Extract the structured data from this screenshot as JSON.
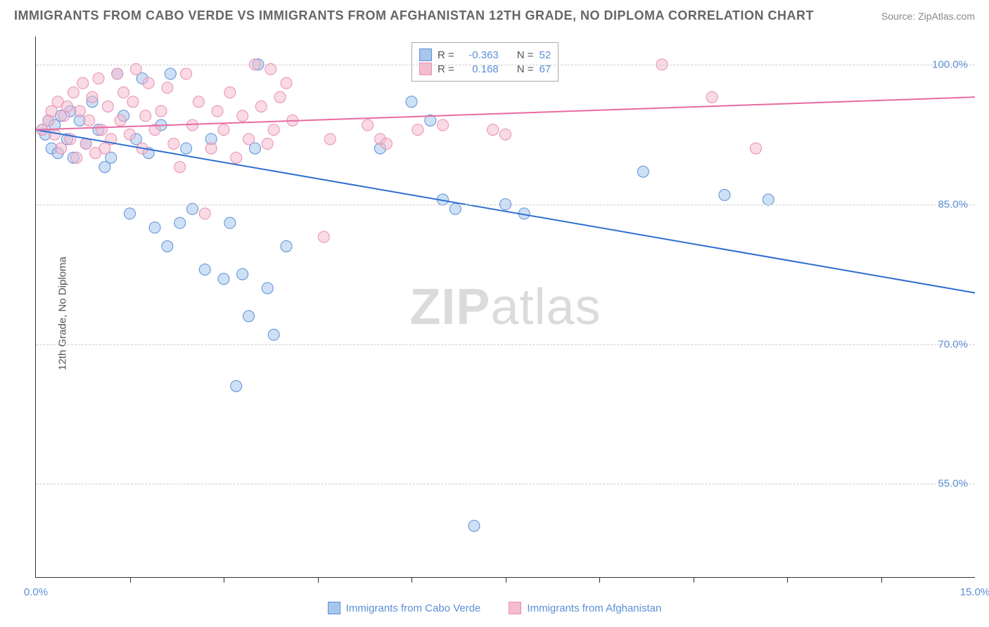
{
  "title": "IMMIGRANTS FROM CABO VERDE VS IMMIGRANTS FROM AFGHANISTAN 12TH GRADE, NO DIPLOMA CORRELATION CHART",
  "source": "Source: ZipAtlas.com",
  "ylabel": "12th Grade, No Diploma",
  "watermark_a": "ZIP",
  "watermark_b": "atlas",
  "chart": {
    "type": "scatter",
    "xlim": [
      0,
      15
    ],
    "ylim": [
      45,
      103
    ],
    "yticks": [
      {
        "v": 55.0,
        "label": "55.0%"
      },
      {
        "v": 70.0,
        "label": "70.0%"
      },
      {
        "v": 85.0,
        "label": "85.0%"
      },
      {
        "v": 100.0,
        "label": "100.0%"
      }
    ],
    "xticks_minor": [
      1.5,
      3,
      4.5,
      6,
      7.5,
      9,
      10.5,
      12,
      13.5
    ],
    "xticks_labeled": [
      {
        "v": 0,
        "label": "0.0%"
      },
      {
        "v": 15,
        "label": "15.0%"
      }
    ],
    "grid_color": "#cccccc",
    "background_color": "#ffffff",
    "marker_radius": 8,
    "marker_opacity": 0.55,
    "line_width": 2,
    "series": [
      {
        "name": "Immigrants from Cabo Verde",
        "color_fill": "#a6c6ec",
        "color_stroke": "#5b8fd6",
        "line_color": "#2f6fd0",
        "R": "-0.363",
        "N": "52",
        "trend": {
          "x1": 0,
          "y1": 93.0,
          "x2": 15,
          "y2": 75.5
        },
        "points": [
          [
            0.1,
            93.0
          ],
          [
            0.15,
            92.5
          ],
          [
            0.2,
            94.0
          ],
          [
            0.25,
            91.0
          ],
          [
            0.3,
            93.5
          ],
          [
            0.35,
            90.5
          ],
          [
            0.4,
            94.5
          ],
          [
            0.5,
            92.0
          ],
          [
            0.55,
            95.0
          ],
          [
            0.6,
            90.0
          ],
          [
            0.7,
            94.0
          ],
          [
            0.8,
            91.5
          ],
          [
            0.9,
            96.0
          ],
          [
            1.0,
            93.0
          ],
          [
            1.1,
            89.0
          ],
          [
            1.2,
            90.0
          ],
          [
            1.3,
            99.0
          ],
          [
            1.4,
            94.5
          ],
          [
            1.5,
            84.0
          ],
          [
            1.6,
            92.0
          ],
          [
            1.7,
            98.5
          ],
          [
            1.8,
            90.5
          ],
          [
            1.9,
            82.5
          ],
          [
            2.0,
            93.5
          ],
          [
            2.1,
            80.5
          ],
          [
            2.15,
            99.0
          ],
          [
            2.3,
            83.0
          ],
          [
            2.4,
            91.0
          ],
          [
            2.5,
            84.5
          ],
          [
            2.7,
            78.0
          ],
          [
            2.8,
            92.0
          ],
          [
            3.0,
            77.0
          ],
          [
            3.1,
            83.0
          ],
          [
            3.2,
            65.5
          ],
          [
            3.3,
            77.5
          ],
          [
            3.4,
            73.0
          ],
          [
            3.5,
            91.0
          ],
          [
            3.55,
            100.0
          ],
          [
            3.7,
            76.0
          ],
          [
            3.8,
            71.0
          ],
          [
            4.0,
            80.5
          ],
          [
            5.5,
            91.0
          ],
          [
            6.0,
            96.0
          ],
          [
            6.3,
            94.0
          ],
          [
            6.5,
            85.5
          ],
          [
            6.7,
            84.5
          ],
          [
            7.0,
            50.5
          ],
          [
            7.5,
            85.0
          ],
          [
            7.8,
            84.0
          ],
          [
            9.7,
            88.5
          ],
          [
            11.0,
            86.0
          ],
          [
            11.7,
            85.5
          ]
        ]
      },
      {
        "name": "Immigrants from Afghanistan",
        "color_fill": "#f4bccf",
        "color_stroke": "#e88fb0",
        "line_color": "#e86ba0",
        "R": "0.168",
        "N": "67",
        "trend": {
          "x1": 0,
          "y1": 93.0,
          "x2": 15,
          "y2": 96.5
        },
        "points": [
          [
            0.1,
            93.0
          ],
          [
            0.2,
            94.0
          ],
          [
            0.25,
            95.0
          ],
          [
            0.3,
            92.5
          ],
          [
            0.35,
            96.0
          ],
          [
            0.4,
            91.0
          ],
          [
            0.45,
            94.5
          ],
          [
            0.5,
            95.5
          ],
          [
            0.55,
            92.0
          ],
          [
            0.6,
            97.0
          ],
          [
            0.65,
            90.0
          ],
          [
            0.7,
            95.0
          ],
          [
            0.75,
            98.0
          ],
          [
            0.8,
            91.5
          ],
          [
            0.85,
            94.0
          ],
          [
            0.9,
            96.5
          ],
          [
            0.95,
            90.5
          ],
          [
            1.0,
            98.5
          ],
          [
            1.05,
            93.0
          ],
          [
            1.1,
            91.0
          ],
          [
            1.15,
            95.5
          ],
          [
            1.2,
            92.0
          ],
          [
            1.3,
            99.0
          ],
          [
            1.35,
            94.0
          ],
          [
            1.4,
            97.0
          ],
          [
            1.5,
            92.5
          ],
          [
            1.55,
            96.0
          ],
          [
            1.6,
            99.5
          ],
          [
            1.7,
            91.0
          ],
          [
            1.75,
            94.5
          ],
          [
            1.8,
            98.0
          ],
          [
            1.9,
            93.0
          ],
          [
            2.0,
            95.0
          ],
          [
            2.1,
            97.5
          ],
          [
            2.2,
            91.5
          ],
          [
            2.3,
            89.0
          ],
          [
            2.4,
            99.0
          ],
          [
            2.5,
            93.5
          ],
          [
            2.6,
            96.0
          ],
          [
            2.7,
            84.0
          ],
          [
            2.8,
            91.0
          ],
          [
            2.9,
            95.0
          ],
          [
            3.0,
            93.0
          ],
          [
            3.1,
            97.0
          ],
          [
            3.2,
            90.0
          ],
          [
            3.3,
            94.5
          ],
          [
            3.4,
            92.0
          ],
          [
            3.5,
            100.0
          ],
          [
            3.6,
            95.5
          ],
          [
            3.7,
            91.5
          ],
          [
            3.75,
            99.5
          ],
          [
            3.8,
            93.0
          ],
          [
            3.9,
            96.5
          ],
          [
            4.0,
            98.0
          ],
          [
            4.1,
            94.0
          ],
          [
            4.6,
            81.5
          ],
          [
            4.7,
            92.0
          ],
          [
            5.3,
            93.5
          ],
          [
            5.5,
            92.0
          ],
          [
            5.6,
            91.5
          ],
          [
            6.1,
            93.0
          ],
          [
            6.5,
            93.5
          ],
          [
            7.3,
            93.0
          ],
          [
            7.5,
            92.5
          ],
          [
            10.0,
            100.0
          ],
          [
            10.8,
            96.5
          ],
          [
            11.5,
            91.0
          ]
        ]
      }
    ],
    "stat_box": {
      "r_label": "R =",
      "n_label": "N ="
    },
    "legend": [
      {
        "label": "Immigrants from Cabo Verde",
        "fill": "#a6c6ec",
        "stroke": "#5b8fd6"
      },
      {
        "label": "Immigrants from Afghanistan",
        "fill": "#f4bccf",
        "stroke": "#e88fb0"
      }
    ]
  }
}
